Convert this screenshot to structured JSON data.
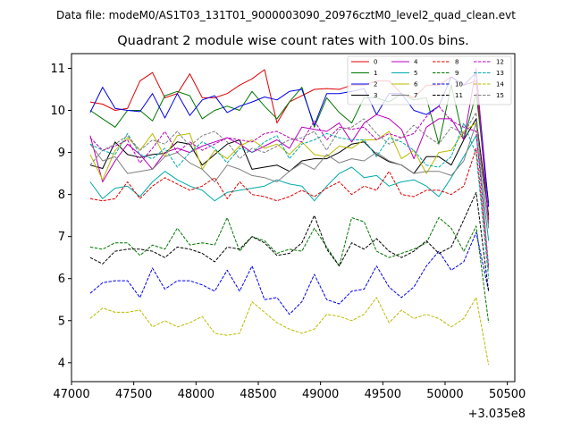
{
  "chart_data": {
    "type": "line",
    "suptitle": "Data file: modeM0/AS1T03_131T01_9000003090_20976cztM0_level2_quad_clean.evt",
    "title": "Quadrant 2 module wise count rates with 100.0s bins.",
    "xlabel": "",
    "ylabel": "",
    "x_offset_label": "+3.035e8",
    "xlim": [
      47000,
      50560
    ],
    "ylim": [
      3.55,
      11.35
    ],
    "xticks": [
      47000,
      47500,
      48000,
      48500,
      49000,
      49500,
      50000,
      50500
    ],
    "xtick_labels": [
      "47000",
      "47500",
      "48000",
      "48500",
      "49000",
      "49500",
      "50000",
      "50500"
    ],
    "yticks": [
      4,
      5,
      6,
      7,
      8,
      9,
      10,
      11
    ],
    "ytick_labels": [
      "4",
      "5",
      "6",
      "7",
      "8",
      "9",
      "10",
      "11"
    ],
    "grid": false,
    "legend_placement": "upper-right",
    "legend_columns": 4,
    "x": [
      47150,
      47250,
      47350,
      47450,
      47550,
      47650,
      47750,
      47850,
      47950,
      48050,
      48150,
      48250,
      48350,
      48450,
      48550,
      48650,
      48750,
      48850,
      48950,
      49050,
      49150,
      49250,
      49350,
      49450,
      49550,
      49650,
      49750,
      49850,
      49950,
      50050,
      50150,
      50250,
      50350
    ],
    "series": [
      {
        "name": "0",
        "color": "#e00000",
        "dash": "solid",
        "values": [
          10.2,
          10.15,
          10.0,
          10.05,
          10.7,
          10.9,
          10.3,
          10.4,
          10.87,
          10.3,
          10.3,
          10.4,
          10.6,
          10.75,
          10.97,
          9.7,
          10.2,
          10.35,
          10.5,
          10.52,
          10.5,
          10.6,
          10.6,
          10.7,
          10.7,
          10.4,
          10.3,
          10.6,
          10.6,
          10.8,
          10.6,
          10.7,
          7.4
        ]
      },
      {
        "name": "1",
        "color": "#007700",
        "dash": "solid",
        "values": [
          10.0,
          9.8,
          9.6,
          10.0,
          10.0,
          9.75,
          10.35,
          10.45,
          10.35,
          9.8,
          10.0,
          10.1,
          10.0,
          10.45,
          10.1,
          9.8,
          10.2,
          10.55,
          9.6,
          10.3,
          9.95,
          9.7,
          10.3,
          10.3,
          10.2,
          10.4,
          10.25,
          10.3,
          9.2,
          10.6,
          9.3,
          10.4,
          7.8
        ]
      },
      {
        "name": "2",
        "color": "#0000ee",
        "dash": "solid",
        "values": [
          9.95,
          10.55,
          10.05,
          10.0,
          9.97,
          10.4,
          9.82,
          10.4,
          9.88,
          10.25,
          10.35,
          9.95,
          10.1,
          10.2,
          10.32,
          10.25,
          10.45,
          10.5,
          9.65,
          10.4,
          10.4,
          10.45,
          10.52,
          9.9,
          10.4,
          10.4,
          10.0,
          9.9,
          10.1,
          10.8,
          10.6,
          10.9,
          7.7
        ]
      },
      {
        "name": "3",
        "color": "#000000",
        "dash": "solid",
        "values": [
          8.7,
          8.62,
          9.25,
          8.95,
          8.88,
          8.95,
          8.98,
          9.25,
          9.2,
          8.7,
          8.95,
          9.2,
          9.3,
          8.6,
          8.65,
          8.7,
          8.55,
          8.8,
          8.85,
          8.85,
          9.0,
          9.2,
          9.25,
          8.95,
          8.78,
          8.7,
          8.5,
          8.9,
          8.9,
          8.7,
          9.3,
          9.8,
          7.5
        ]
      },
      {
        "name": "4",
        "color": "#bb00bb",
        "dash": "solid",
        "values": [
          9.4,
          8.3,
          8.8,
          9.2,
          8.95,
          8.6,
          9.0,
          9.1,
          9.0,
          9.15,
          9.25,
          9.35,
          9.2,
          9.0,
          9.15,
          9.3,
          9.1,
          9.6,
          9.55,
          9.5,
          9.7,
          9.25,
          9.7,
          9.9,
          9.8,
          9.55,
          8.85,
          9.6,
          9.8,
          9.8,
          9.3,
          11.0,
          7.3
        ]
      },
      {
        "name": "5",
        "color": "#00aaaa",
        "dash": "solid",
        "values": [
          8.3,
          7.9,
          8.15,
          8.2,
          7.95,
          8.3,
          8.55,
          8.35,
          8.2,
          8.1,
          7.85,
          8.05,
          8.1,
          8.15,
          8.2,
          8.35,
          8.25,
          8.2,
          7.85,
          8.2,
          8.5,
          8.65,
          8.4,
          8.45,
          8.2,
          8.3,
          8.35,
          8.2,
          7.95,
          8.4,
          8.9,
          9.4,
          6.9
        ]
      },
      {
        "name": "6",
        "color": "#bbbb00",
        "dash": "solid",
        "values": [
          8.95,
          8.35,
          9.05,
          9.35,
          9.05,
          9.45,
          8.9,
          9.4,
          9.45,
          8.6,
          9.05,
          8.85,
          9.15,
          9.3,
          9.1,
          9.2,
          8.95,
          9.25,
          8.95,
          8.9,
          9.15,
          9.1,
          9.3,
          9.3,
          9.5,
          8.85,
          9.05,
          8.5,
          9.0,
          9.05,
          9.5,
          9.7,
          7.2
        ]
      },
      {
        "name": "7",
        "color": "#808080",
        "dash": "solid",
        "values": [
          9.2,
          8.8,
          8.9,
          8.5,
          8.55,
          8.6,
          8.9,
          9.0,
          8.75,
          8.6,
          8.3,
          8.7,
          8.6,
          8.45,
          8.4,
          8.3,
          8.55,
          8.75,
          8.6,
          8.95,
          8.75,
          8.85,
          8.8,
          9.0,
          8.8,
          8.7,
          8.5,
          8.55,
          8.55,
          8.45,
          8.8,
          9.7,
          7.2
        ]
      },
      {
        "name": "8",
        "color": "#e00000",
        "dash": "dashed",
        "values": [
          7.9,
          7.85,
          7.9,
          8.3,
          7.9,
          8.2,
          8.4,
          8.25,
          8.1,
          8.2,
          8.4,
          7.9,
          8.3,
          8.0,
          7.95,
          7.85,
          7.95,
          8.1,
          7.95,
          8.15,
          8.3,
          8.0,
          8.2,
          8.1,
          8.55,
          8.0,
          7.95,
          8.1,
          8.1,
          8.0,
          8.2,
          9.1,
          6.2
        ]
      },
      {
        "name": "9",
        "color": "#007700",
        "dash": "dashed",
        "values": [
          6.75,
          6.7,
          6.85,
          6.85,
          6.55,
          6.8,
          6.7,
          7.2,
          6.8,
          6.85,
          6.8,
          7.45,
          6.65,
          7.0,
          6.9,
          6.6,
          6.7,
          6.65,
          7.2,
          6.75,
          6.3,
          7.45,
          7.35,
          6.65,
          6.5,
          6.6,
          6.7,
          6.85,
          7.45,
          7.2,
          6.65,
          7.25,
          4.95
        ]
      },
      {
        "name": "10",
        "color": "#0000ee",
        "dash": "dashed",
        "values": [
          5.65,
          5.9,
          5.95,
          5.95,
          5.55,
          6.25,
          5.75,
          5.95,
          5.95,
          5.85,
          5.7,
          6.2,
          5.7,
          6.3,
          5.5,
          5.55,
          5.15,
          5.45,
          6.1,
          5.5,
          5.4,
          5.7,
          5.75,
          6.3,
          5.8,
          5.55,
          5.8,
          6.3,
          6.65,
          6.2,
          6.4,
          7.1,
          5.7
        ]
      },
      {
        "name": "11",
        "color": "#000000",
        "dash": "dashed",
        "values": [
          6.5,
          6.35,
          6.65,
          6.7,
          6.7,
          6.65,
          6.5,
          6.75,
          6.7,
          6.6,
          6.4,
          6.75,
          6.7,
          7.0,
          6.85,
          6.55,
          6.6,
          6.85,
          7.5,
          6.7,
          6.3,
          6.85,
          6.7,
          6.95,
          6.65,
          6.5,
          6.65,
          6.9,
          6.6,
          6.75,
          7.4,
          8.05,
          5.7
        ]
      },
      {
        "name": "12",
        "color": "#bb00bb",
        "dash": "dashed",
        "values": [
          9.35,
          9.05,
          9.15,
          9.3,
          8.75,
          9.1,
          9.5,
          9.0,
          9.25,
          9.05,
          9.2,
          9.35,
          9.3,
          9.25,
          9.45,
          9.5,
          9.35,
          9.25,
          9.75,
          9.3,
          9.6,
          9.55,
          9.6,
          9.3,
          9.45,
          9.35,
          9.45,
          9.85,
          10.1,
          9.75,
          9.6,
          9.5,
          6.3
        ]
      },
      {
        "name": "13",
        "color": "#00aaaa",
        "dash": "dashed",
        "values": [
          9.2,
          9.05,
          8.95,
          9.45,
          8.95,
          8.85,
          9.1,
          8.65,
          9.0,
          9.25,
          9.1,
          8.75,
          9.1,
          9.0,
          9.25,
          9.4,
          8.85,
          9.2,
          9.3,
          9.45,
          9.35,
          9.3,
          9.3,
          8.9,
          9.35,
          9.25,
          9.05,
          8.7,
          8.65,
          8.9,
          9.7,
          8.95,
          6.0
        ]
      },
      {
        "name": "14",
        "color": "#bbbb00",
        "dash": "dashed",
        "values": [
          5.05,
          5.3,
          5.2,
          5.2,
          5.25,
          4.85,
          5.0,
          4.85,
          4.95,
          5.1,
          4.7,
          4.65,
          4.7,
          5.45,
          5.2,
          4.95,
          4.8,
          4.7,
          4.8,
          5.15,
          5.1,
          5.0,
          5.15,
          5.55,
          4.95,
          5.25,
          5.05,
          5.15,
          5.05,
          4.85,
          5.05,
          5.55,
          3.95
        ]
      },
      {
        "name": "15",
        "color": "#808080",
        "dash": "dashed",
        "values": [
          8.7,
          9.05,
          9.2,
          9.4,
          9.05,
          9.3,
          9.2,
          9.5,
          9.15,
          9.4,
          9.5,
          9.25,
          8.85,
          9.1,
          9.0,
          9.15,
          9.3,
          9.35,
          9.5,
          9.05,
          9.55,
          9.6,
          9.8,
          9.45,
          9.2,
          9.35,
          9.65,
          9.4,
          9.2,
          9.6,
          9.45,
          9.95,
          6.2
        ]
      }
    ]
  }
}
